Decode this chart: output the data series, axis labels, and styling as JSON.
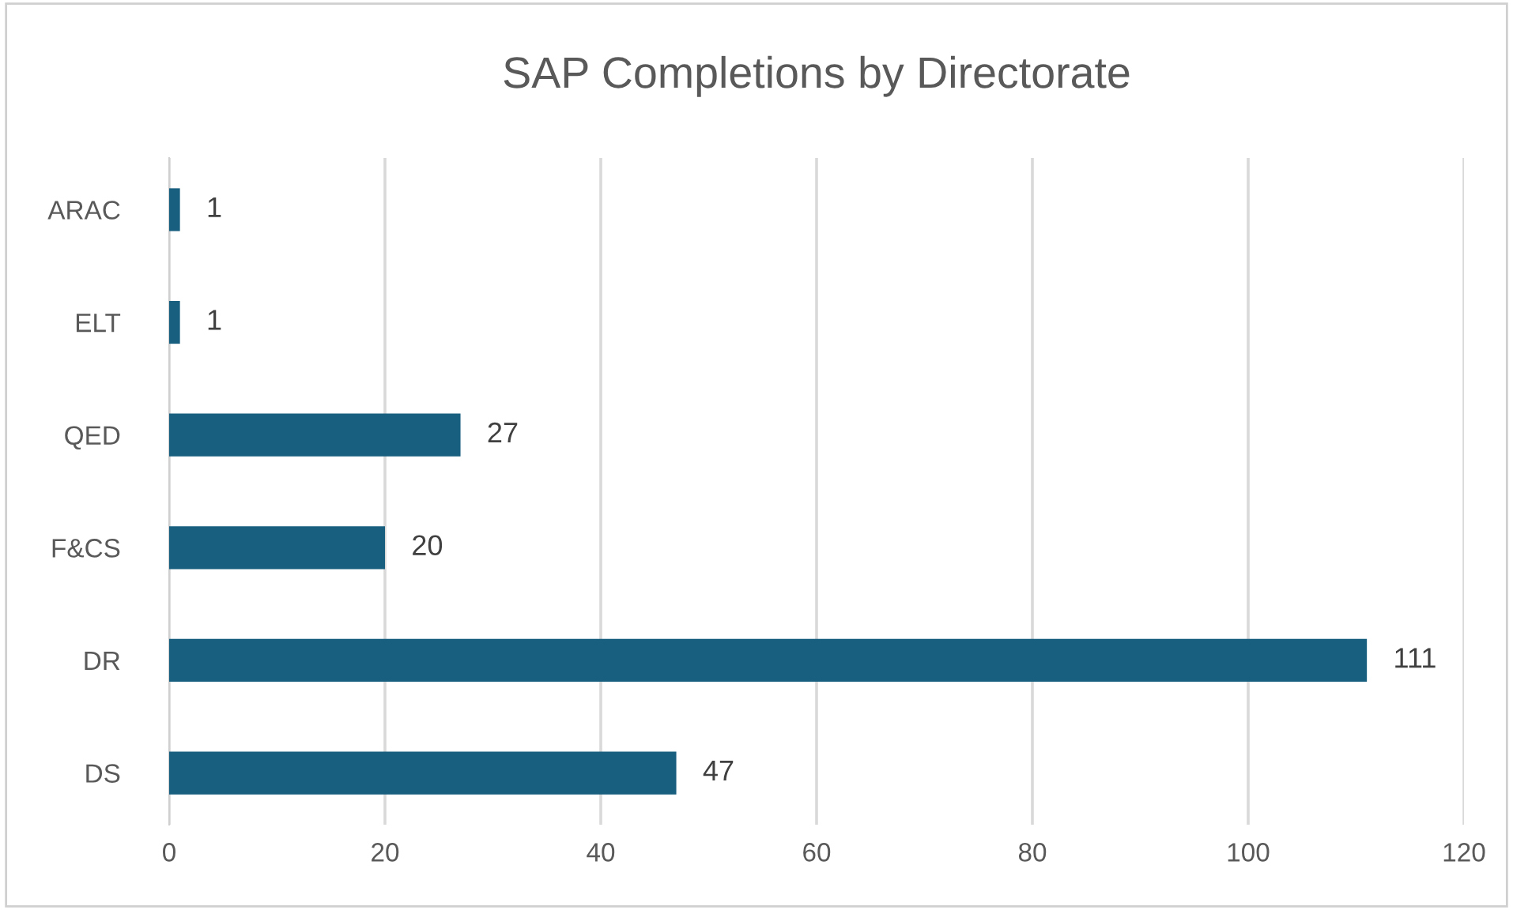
{
  "chart_data": {
    "type": "bar",
    "orientation": "horizontal",
    "title": "SAP Completions by Directorate",
    "categories": [
      "ARAC",
      "ELT",
      "QED",
      "F&CS",
      "DR",
      "DS"
    ],
    "values": [
      1,
      1,
      27,
      20,
      111,
      47
    ],
    "color": "#175e7f",
    "xlim": [
      0,
      120
    ],
    "xticks": [
      0,
      20,
      40,
      60,
      80,
      100,
      120
    ],
    "grid": "x",
    "data_labels": true,
    "legend": false
  }
}
